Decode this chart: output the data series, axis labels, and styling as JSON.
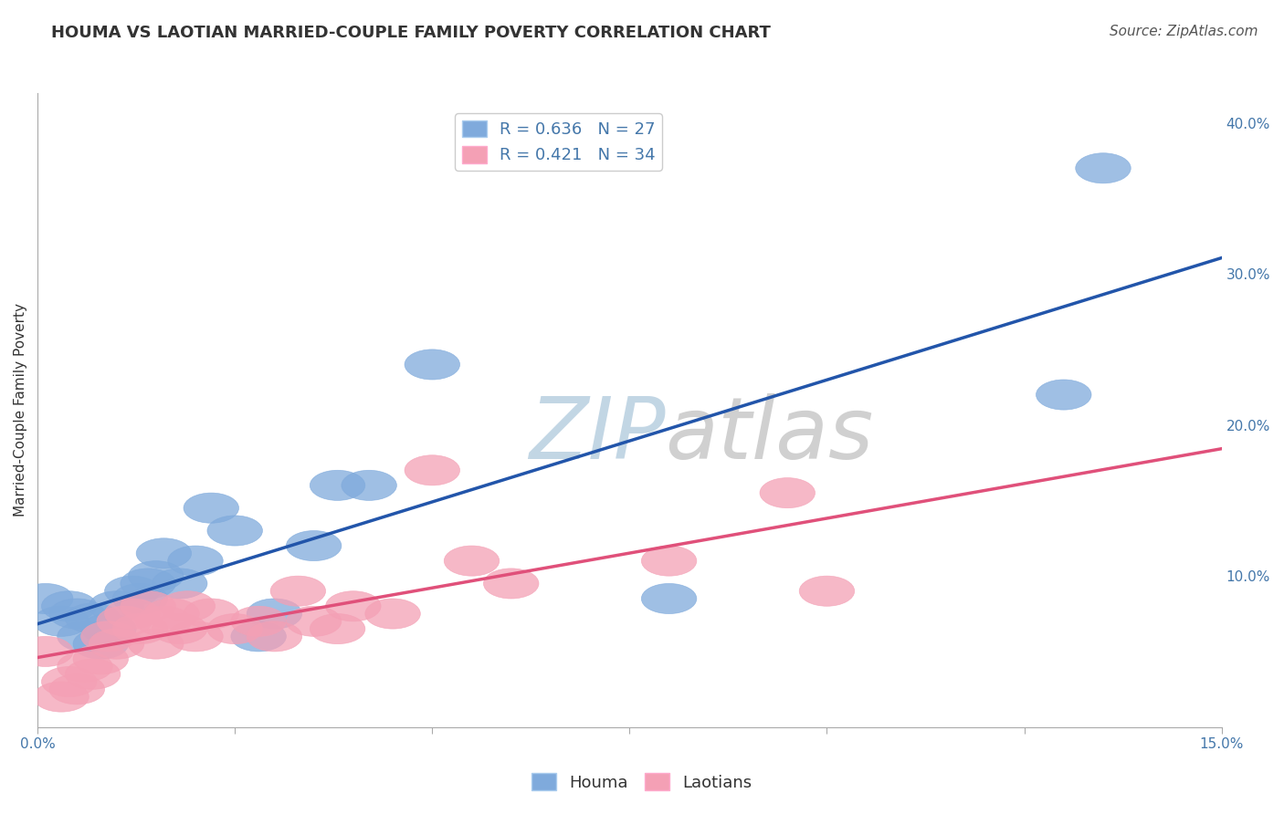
{
  "title": "HOUMA VS LAOTIAN MARRIED-COUPLE FAMILY POVERTY CORRELATION CHART",
  "source_text": "Source: ZipAtlas.com",
  "ylabel": "Married-Couple Family Poverty",
  "xlim": [
    0.0,
    0.15
  ],
  "ylim": [
    0.0,
    0.42
  ],
  "xticks": [
    0.0,
    0.025,
    0.05,
    0.075,
    0.1,
    0.125,
    0.15
  ],
  "xticklabels": [
    "0.0%",
    "",
    "",
    "",
    "",
    "",
    "15.0%"
  ],
  "yticks_right": [
    0.0,
    0.1,
    0.2,
    0.3,
    0.4
  ],
  "yticklabels_right": [
    "",
    "10.0%",
    "20.0%",
    "30.0%",
    "40.0%"
  ],
  "houma_R": 0.636,
  "houma_N": 27,
  "laotian_R": 0.421,
  "laotian_N": 34,
  "houma_color": "#7faadc",
  "laotian_color": "#f4a0b5",
  "houma_line_color": "#2255aa",
  "laotian_line_color": "#e0507a",
  "background_color": "#ffffff",
  "houma_x": [
    0.001,
    0.003,
    0.004,
    0.005,
    0.006,
    0.007,
    0.008,
    0.009,
    0.01,
    0.012,
    0.013,
    0.014,
    0.015,
    0.016,
    0.018,
    0.02,
    0.022,
    0.025,
    0.028,
    0.03,
    0.035,
    0.038,
    0.042,
    0.05,
    0.08,
    0.13,
    0.135
  ],
  "houma_y": [
    0.085,
    0.07,
    0.08,
    0.075,
    0.06,
    0.072,
    0.055,
    0.065,
    0.08,
    0.09,
    0.085,
    0.095,
    0.1,
    0.115,
    0.095,
    0.11,
    0.145,
    0.13,
    0.06,
    0.075,
    0.12,
    0.16,
    0.16,
    0.24,
    0.085,
    0.22,
    0.37
  ],
  "laotian_x": [
    0.001,
    0.003,
    0.004,
    0.005,
    0.006,
    0.007,
    0.008,
    0.009,
    0.01,
    0.011,
    0.012,
    0.013,
    0.014,
    0.015,
    0.016,
    0.017,
    0.018,
    0.019,
    0.02,
    0.022,
    0.025,
    0.028,
    0.03,
    0.033,
    0.035,
    0.038,
    0.04,
    0.045,
    0.05,
    0.055,
    0.06,
    0.08,
    0.095,
    0.1
  ],
  "laotian_y": [
    0.05,
    0.02,
    0.03,
    0.025,
    0.04,
    0.035,
    0.045,
    0.06,
    0.055,
    0.07,
    0.075,
    0.065,
    0.08,
    0.055,
    0.07,
    0.075,
    0.065,
    0.08,
    0.06,
    0.075,
    0.065,
    0.07,
    0.06,
    0.09,
    0.07,
    0.065,
    0.08,
    0.075,
    0.17,
    0.11,
    0.095,
    0.11,
    0.155,
    0.09
  ],
  "title_fontsize": 13,
  "axis_label_fontsize": 11,
  "tick_fontsize": 11,
  "legend_fontsize": 13,
  "source_fontsize": 11
}
